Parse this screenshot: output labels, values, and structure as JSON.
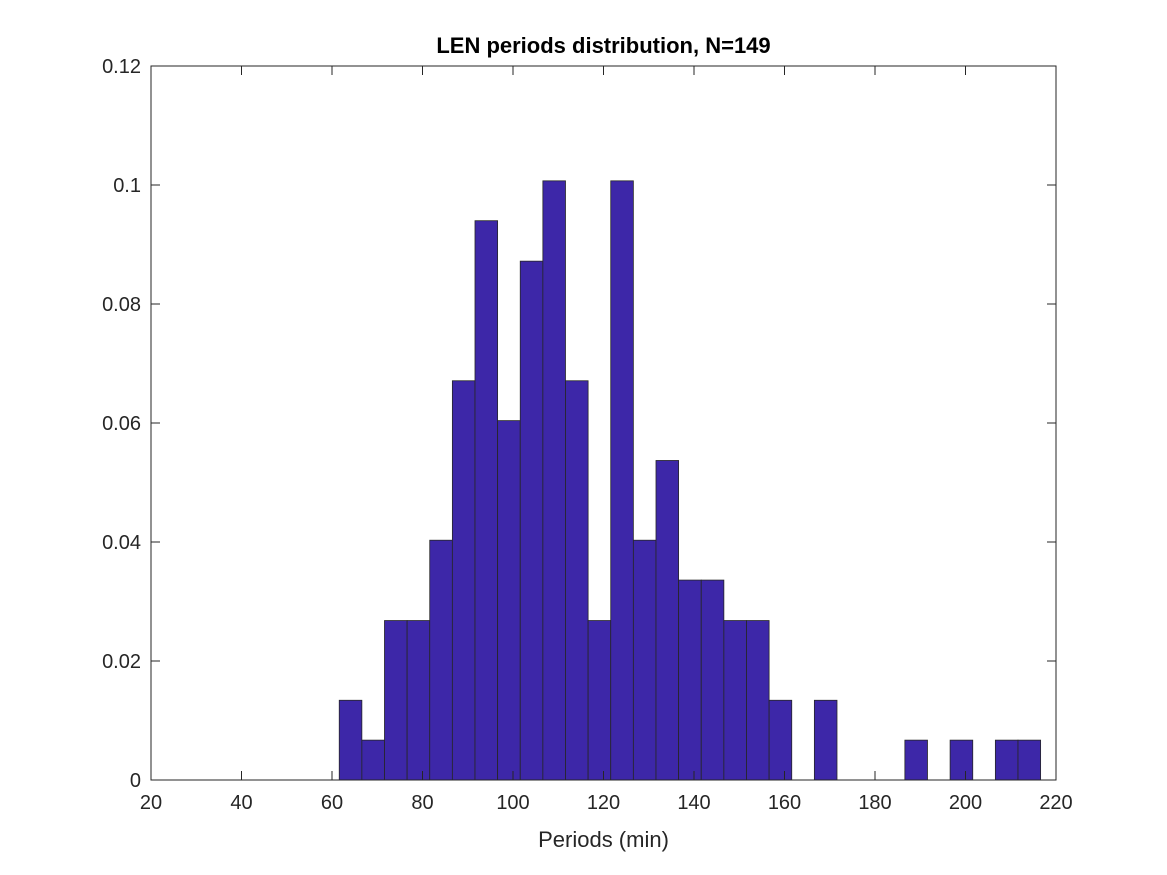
{
  "chart_data": {
    "type": "bar",
    "title": "LEN periods distribution, N=149",
    "xlabel": "Periods (min)",
    "ylabel": "",
    "xlim": [
      20,
      220
    ],
    "ylim": [
      0,
      0.12
    ],
    "xticks": [
      "20",
      "40",
      "60",
      "80",
      "100",
      "120",
      "140",
      "160",
      "180",
      "200",
      "220"
    ],
    "yticks": [
      "0",
      "0.02",
      "0.04",
      "0.06",
      "0.08",
      "0.1",
      "0.12"
    ],
    "bin_edges": [
      61.6,
      66.6,
      71.6,
      76.6,
      81.6,
      86.6,
      91.6,
      96.6,
      101.6,
      106.6,
      111.6,
      116.6,
      121.6,
      126.6,
      131.6,
      136.6,
      141.6,
      146.6,
      151.6,
      156.6,
      161.6,
      166.6,
      171.6,
      176.6,
      181.6,
      186.6,
      191.6,
      196.6,
      201.6,
      206.6,
      211.6,
      216.6
    ],
    "values": [
      0.0134,
      0.0067,
      0.0268,
      0.0268,
      0.0403,
      0.0671,
      0.094,
      0.0604,
      0.0872,
      0.1007,
      0.0671,
      0.0268,
      0.1007,
      0.0403,
      0.0537,
      0.0336,
      0.0336,
      0.0268,
      0.0268,
      0.0134,
      0,
      0.0134,
      0,
      0,
      0,
      0.0067,
      0,
      0.0067,
      0,
      0.0067,
      0.0067
    ],
    "bar_color": "#3d27a8",
    "grid": false
  }
}
